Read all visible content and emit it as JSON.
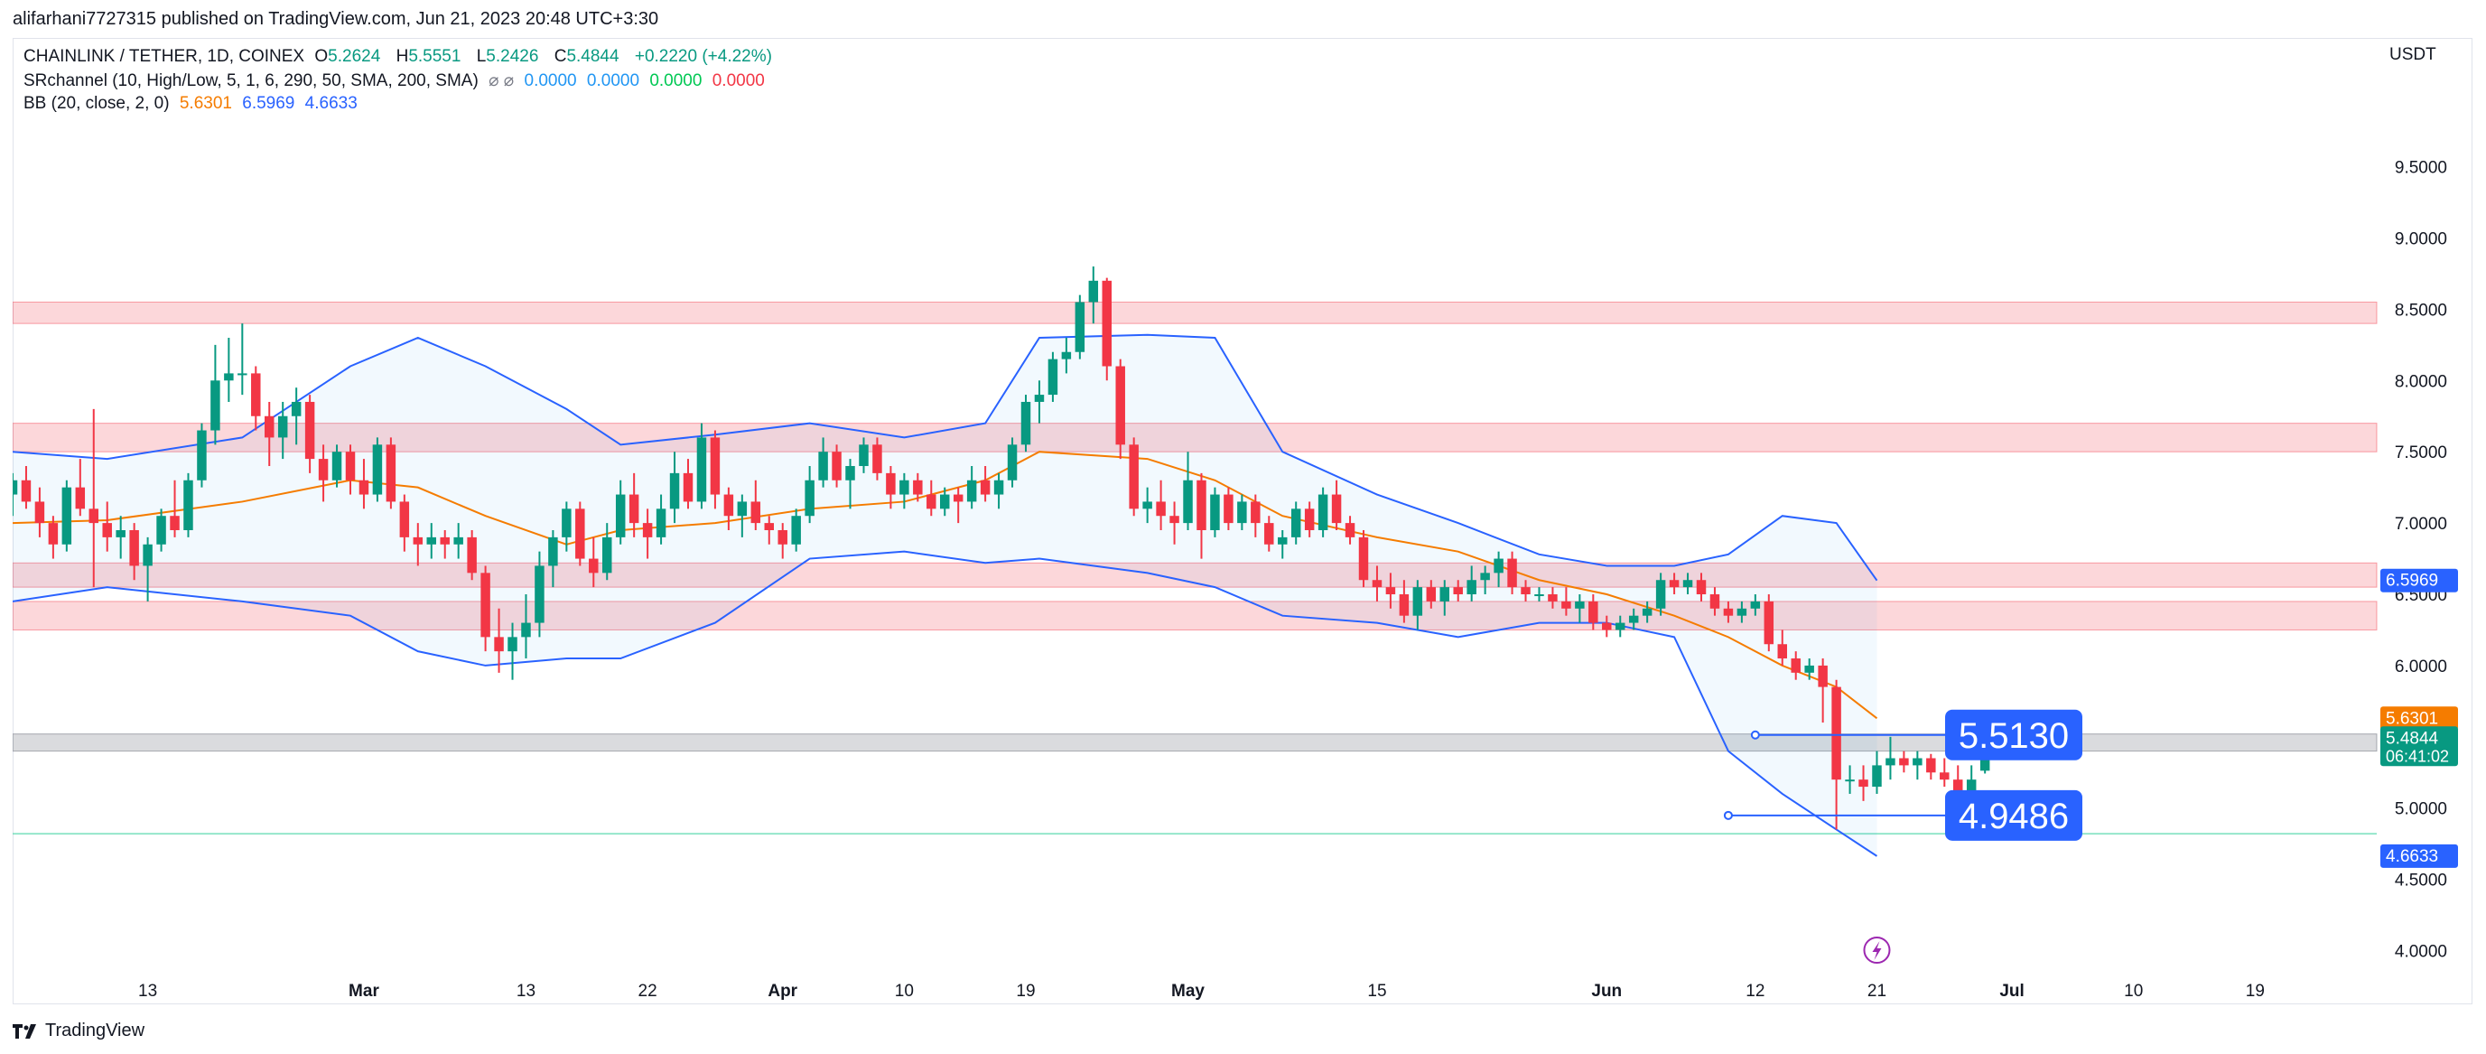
{
  "header": {
    "published": "alifarhani7727315 published on TradingView.com, Jun 21, 2023 20:48 UTC+3:30"
  },
  "legend": {
    "title": "CHAINLINK / TETHER, 1D, COINEX",
    "open_label": "O",
    "open": "5.2624",
    "high_label": "H",
    "high": "5.5551",
    "low_label": "L",
    "low": "5.2426",
    "close_label": "C",
    "close": "5.4844",
    "change": "+0.2220 (+4.22%)",
    "sr_title": "SRchannel (10, High/Low, 5, 1, 6, 290, 50, SMA, 200, SMA)",
    "sr_icons": "⌀ ⌀",
    "sr_v1": "0.0000",
    "sr_v2": "0.0000",
    "sr_v3": "0.0000",
    "sr_v4": "0.0000",
    "bb_title": "BB (20, close, 2, 0)",
    "bb_basis": "5.6301",
    "bb_upper": "6.5969",
    "bb_lower": "4.6633"
  },
  "currency": "USDT",
  "footer": {
    "brand": "TradingView"
  },
  "colors": {
    "up": "#089981",
    "down": "#f23645",
    "bb_upper": "#2962ff",
    "bb_basis": "#f57c00",
    "bb_fill": "#2196f3",
    "sr_zone": "#f23645"
  },
  "chart_data": {
    "type": "candlestick",
    "title": "CHAINLINK / TETHER, 1D, COINEX",
    "ylim": [
      3.75,
      10.15
    ],
    "y_ticks": [
      "4.0000",
      "4.5000",
      "5.0000",
      "5.5000",
      "6.0000",
      "6.5000",
      "7.0000",
      "7.5000",
      "8.0000",
      "8.5000",
      "9.0000",
      "9.5000"
    ],
    "y_tick_values": [
      4.0,
      4.5,
      5.0,
      5.5,
      6.0,
      6.5,
      7.0,
      7.5,
      8.0,
      8.5,
      9.0,
      9.5
    ],
    "x_ticks": [
      {
        "label": "13",
        "date": "2023-02-13"
      },
      {
        "label": "Mar",
        "date": "2023-03-01"
      },
      {
        "label": "13",
        "date": "2023-03-13"
      },
      {
        "label": "22",
        "date": "2023-03-22"
      },
      {
        "label": "Apr",
        "date": "2023-04-01"
      },
      {
        "label": "10",
        "date": "2023-04-10"
      },
      {
        "label": "19",
        "date": "2023-04-19"
      },
      {
        "label": "May",
        "date": "2023-05-01"
      },
      {
        "label": "15",
        "date": "2023-05-15"
      },
      {
        "label": "Jun",
        "date": "2023-06-01"
      },
      {
        "label": "12",
        "date": "2023-06-12"
      },
      {
        "label": "21",
        "date": "2023-06-21"
      },
      {
        "label": "Jul",
        "date": "2023-07-01"
      },
      {
        "label": "10",
        "date": "2023-07-10"
      },
      {
        "label": "19",
        "date": "2023-07-19"
      }
    ],
    "x_range": [
      "2023-02-03",
      "2023-07-28"
    ],
    "candles_start": "2023-02-03",
    "candles": [
      [
        7.2,
        7.35,
        7.05,
        7.3
      ],
      [
        7.3,
        7.4,
        7.1,
        7.15
      ],
      [
        7.15,
        7.25,
        6.9,
        7.0
      ],
      [
        7.0,
        7.05,
        6.75,
        6.85
      ],
      [
        6.85,
        7.3,
        6.8,
        7.25
      ],
      [
        7.25,
        7.45,
        7.05,
        7.1
      ],
      [
        7.1,
        7.8,
        6.55,
        7.0
      ],
      [
        7.0,
        7.15,
        6.8,
        6.9
      ],
      [
        6.9,
        7.05,
        6.75,
        6.95
      ],
      [
        6.95,
        7.0,
        6.6,
        6.7
      ],
      [
        6.7,
        6.9,
        6.45,
        6.85
      ],
      [
        6.85,
        7.1,
        6.8,
        7.05
      ],
      [
        7.05,
        7.3,
        6.9,
        6.95
      ],
      [
        6.95,
        7.35,
        6.9,
        7.3
      ],
      [
        7.3,
        7.7,
        7.25,
        7.65
      ],
      [
        7.65,
        8.25,
        7.55,
        8.0
      ],
      [
        8.0,
        8.3,
        7.85,
        8.05
      ],
      [
        8.05,
        8.4,
        7.9,
        8.05
      ],
      [
        8.05,
        8.1,
        7.65,
        7.75
      ],
      [
        7.75,
        7.85,
        7.4,
        7.6
      ],
      [
        7.6,
        7.85,
        7.45,
        7.75
      ],
      [
        7.75,
        7.95,
        7.55,
        7.85
      ],
      [
        7.85,
        7.9,
        7.35,
        7.45
      ],
      [
        7.45,
        7.55,
        7.15,
        7.3
      ],
      [
        7.3,
        7.55,
        7.25,
        7.5
      ],
      [
        7.5,
        7.55,
        7.2,
        7.3
      ],
      [
        7.3,
        7.45,
        7.1,
        7.2
      ],
      [
        7.2,
        7.6,
        7.15,
        7.55
      ],
      [
        7.55,
        7.6,
        7.1,
        7.15
      ],
      [
        7.15,
        7.2,
        6.8,
        6.9
      ],
      [
        6.9,
        7.0,
        6.7,
        6.85
      ],
      [
        6.85,
        7.0,
        6.75,
        6.9
      ],
      [
        6.9,
        6.95,
        6.75,
        6.85
      ],
      [
        6.85,
        7.0,
        6.75,
        6.9
      ],
      [
        6.9,
        6.95,
        6.6,
        6.65
      ],
      [
        6.65,
        6.7,
        6.1,
        6.2
      ],
      [
        6.2,
        6.4,
        5.95,
        6.1
      ],
      [
        6.1,
        6.3,
        5.9,
        6.2
      ],
      [
        6.2,
        6.5,
        6.05,
        6.3
      ],
      [
        6.3,
        6.8,
        6.2,
        6.7
      ],
      [
        6.7,
        6.95,
        6.55,
        6.9
      ],
      [
        6.9,
        7.15,
        6.8,
        7.1
      ],
      [
        7.1,
        7.15,
        6.7,
        6.75
      ],
      [
        6.75,
        6.9,
        6.55,
        6.65
      ],
      [
        6.65,
        7.0,
        6.6,
        6.9
      ],
      [
        6.9,
        7.3,
        6.85,
        7.2
      ],
      [
        7.2,
        7.35,
        6.9,
        7.0
      ],
      [
        7.0,
        7.1,
        6.75,
        6.9
      ],
      [
        6.9,
        7.2,
        6.85,
        7.1
      ],
      [
        7.1,
        7.5,
        7.0,
        7.35
      ],
      [
        7.35,
        7.45,
        7.1,
        7.15
      ],
      [
        7.15,
        7.7,
        7.1,
        7.6
      ],
      [
        7.6,
        7.65,
        7.1,
        7.2
      ],
      [
        7.2,
        7.25,
        6.95,
        7.05
      ],
      [
        7.05,
        7.2,
        6.9,
        7.15
      ],
      [
        7.15,
        7.3,
        6.95,
        7.0
      ],
      [
        7.0,
        7.05,
        6.85,
        6.95
      ],
      [
        6.95,
        7.0,
        6.75,
        6.85
      ],
      [
        6.85,
        7.1,
        6.8,
        7.05
      ],
      [
        7.05,
        7.4,
        7.0,
        7.3
      ],
      [
        7.3,
        7.6,
        7.25,
        7.5
      ],
      [
        7.5,
        7.55,
        7.25,
        7.3
      ],
      [
        7.3,
        7.45,
        7.1,
        7.4
      ],
      [
        7.4,
        7.6,
        7.35,
        7.55
      ],
      [
        7.55,
        7.6,
        7.3,
        7.35
      ],
      [
        7.35,
        7.4,
        7.1,
        7.2
      ],
      [
        7.2,
        7.35,
        7.1,
        7.3
      ],
      [
        7.3,
        7.35,
        7.15,
        7.2
      ],
      [
        7.2,
        7.3,
        7.05,
        7.1
      ],
      [
        7.1,
        7.25,
        7.05,
        7.2
      ],
      [
        7.2,
        7.25,
        7.0,
        7.15
      ],
      [
        7.15,
        7.4,
        7.1,
        7.3
      ],
      [
        7.3,
        7.4,
        7.15,
        7.2
      ],
      [
        7.2,
        7.35,
        7.1,
        7.3
      ],
      [
        7.3,
        7.6,
        7.25,
        7.55
      ],
      [
        7.55,
        7.9,
        7.5,
        7.85
      ],
      [
        7.85,
        8.0,
        7.7,
        7.9
      ],
      [
        7.9,
        8.2,
        7.85,
        8.15
      ],
      [
        8.15,
        8.3,
        8.05,
        8.2
      ],
      [
        8.2,
        8.6,
        8.15,
        8.55
      ],
      [
        8.55,
        8.8,
        8.4,
        8.7
      ],
      [
        8.7,
        8.72,
        8.0,
        8.1
      ],
      [
        8.1,
        8.15,
        7.45,
        7.55
      ],
      [
        7.55,
        7.6,
        7.05,
        7.1
      ],
      [
        7.1,
        7.25,
        7.0,
        7.15
      ],
      [
        7.15,
        7.3,
        6.95,
        7.05
      ],
      [
        7.05,
        7.15,
        6.85,
        7.0
      ],
      [
        7.0,
        7.5,
        6.95,
        7.3
      ],
      [
        7.3,
        7.35,
        6.75,
        6.95
      ],
      [
        6.95,
        7.25,
        6.9,
        7.2
      ],
      [
        7.2,
        7.25,
        6.95,
        7.0
      ],
      [
        7.0,
        7.2,
        6.95,
        7.15
      ],
      [
        7.15,
        7.2,
        6.9,
        7.0
      ],
      [
        7.0,
        7.05,
        6.8,
        6.85
      ],
      [
        6.85,
        6.95,
        6.75,
        6.9
      ],
      [
        6.9,
        7.15,
        6.85,
        7.1
      ],
      [
        7.1,
        7.15,
        6.9,
        6.95
      ],
      [
        6.95,
        7.25,
        6.9,
        7.2
      ],
      [
        7.2,
        7.3,
        6.95,
        7.0
      ],
      [
        7.0,
        7.05,
        6.85,
        6.9
      ],
      [
        6.9,
        6.95,
        6.55,
        6.6
      ],
      [
        6.6,
        6.7,
        6.45,
        6.55
      ],
      [
        6.55,
        6.65,
        6.4,
        6.5
      ],
      [
        6.5,
        6.6,
        6.3,
        6.35
      ],
      [
        6.35,
        6.6,
        6.25,
        6.55
      ],
      [
        6.55,
        6.6,
        6.4,
        6.45
      ],
      [
        6.45,
        6.6,
        6.35,
        6.55
      ],
      [
        6.55,
        6.6,
        6.45,
        6.5
      ],
      [
        6.5,
        6.7,
        6.45,
        6.6
      ],
      [
        6.6,
        6.7,
        6.5,
        6.65
      ],
      [
        6.65,
        6.8,
        6.55,
        6.75
      ],
      [
        6.75,
        6.8,
        6.5,
        6.55
      ],
      [
        6.55,
        6.6,
        6.45,
        6.5
      ],
      [
        6.5,
        6.55,
        6.45,
        6.5
      ],
      [
        6.5,
        6.55,
        6.4,
        6.45
      ],
      [
        6.45,
        6.55,
        6.35,
        6.4
      ],
      [
        6.4,
        6.5,
        6.3,
        6.45
      ],
      [
        6.45,
        6.5,
        6.25,
        6.3
      ],
      [
        6.3,
        6.35,
        6.2,
        6.25
      ],
      [
        6.25,
        6.35,
        6.2,
        6.3
      ],
      [
        6.3,
        6.4,
        6.25,
        6.35
      ],
      [
        6.35,
        6.45,
        6.3,
        6.4
      ],
      [
        6.4,
        6.65,
        6.35,
        6.6
      ],
      [
        6.6,
        6.65,
        6.5,
        6.55
      ],
      [
        6.55,
        6.65,
        6.5,
        6.6
      ],
      [
        6.6,
        6.65,
        6.45,
        6.5
      ],
      [
        6.5,
        6.55,
        6.35,
        6.4
      ],
      [
        6.4,
        6.45,
        6.3,
        6.35
      ],
      [
        6.35,
        6.45,
        6.3,
        6.4
      ],
      [
        6.4,
        6.5,
        6.35,
        6.45
      ],
      [
        6.45,
        6.5,
        6.1,
        6.15
      ],
      [
        6.15,
        6.25,
        6.0,
        6.05
      ],
      [
        6.05,
        6.1,
        5.9,
        5.95
      ],
      [
        5.95,
        6.05,
        5.9,
        6.0
      ],
      [
        6.0,
        6.05,
        5.6,
        5.85
      ],
      [
        5.85,
        5.9,
        4.85,
        5.2
      ],
      [
        5.2,
        5.3,
        5.1,
        5.2
      ],
      [
        5.2,
        5.3,
        5.05,
        5.15
      ],
      [
        5.15,
        5.4,
        5.1,
        5.3
      ],
      [
        5.3,
        5.5,
        5.2,
        5.35
      ],
      [
        5.35,
        5.4,
        5.25,
        5.3
      ],
      [
        5.3,
        5.4,
        5.2,
        5.35
      ],
      [
        5.35,
        5.38,
        5.2,
        5.25
      ],
      [
        5.25,
        5.35,
        5.15,
        5.2
      ],
      [
        5.2,
        5.3,
        5.05,
        5.1
      ],
      [
        5.1,
        5.3,
        5.05,
        5.2
      ],
      [
        5.2624,
        5.5551,
        5.2426,
        5.4844
      ]
    ],
    "series": [
      {
        "name": "BB Upper",
        "dates": [
          "2023-02-03",
          "2023-02-10",
          "2023-02-20",
          "2023-02-28",
          "2023-03-05",
          "2023-03-10",
          "2023-03-16",
          "2023-03-20",
          "2023-03-27",
          "2023-04-03",
          "2023-04-10",
          "2023-04-16",
          "2023-04-20",
          "2023-04-28",
          "2023-05-03",
          "2023-05-08",
          "2023-05-15",
          "2023-05-21",
          "2023-05-27",
          "2023-06-01",
          "2023-06-06",
          "2023-06-10",
          "2023-06-14",
          "2023-06-18",
          "2023-06-21"
        ],
        "values": [
          7.5,
          7.45,
          7.6,
          8.1,
          8.3,
          8.1,
          7.8,
          7.55,
          7.62,
          7.7,
          7.6,
          7.7,
          8.3,
          8.32,
          8.3,
          7.5,
          7.2,
          7.0,
          6.78,
          6.7,
          6.7,
          6.78,
          7.05,
          7.0,
          6.5969
        ]
      },
      {
        "name": "BB Basis",
        "dates": [
          "2023-02-03",
          "2023-02-10",
          "2023-02-20",
          "2023-02-28",
          "2023-03-05",
          "2023-03-10",
          "2023-03-16",
          "2023-03-20",
          "2023-03-27",
          "2023-04-03",
          "2023-04-10",
          "2023-04-16",
          "2023-04-20",
          "2023-04-28",
          "2023-05-03",
          "2023-05-08",
          "2023-05-15",
          "2023-05-21",
          "2023-05-27",
          "2023-06-01",
          "2023-06-06",
          "2023-06-10",
          "2023-06-14",
          "2023-06-18",
          "2023-06-21"
        ],
        "values": [
          7.0,
          7.02,
          7.15,
          7.3,
          7.25,
          7.05,
          6.85,
          6.95,
          7.0,
          7.1,
          7.15,
          7.3,
          7.5,
          7.45,
          7.3,
          7.05,
          6.9,
          6.8,
          6.6,
          6.5,
          6.35,
          6.2,
          6.0,
          5.85,
          5.6301
        ]
      },
      {
        "name": "BB Lower",
        "dates": [
          "2023-02-03",
          "2023-02-10",
          "2023-02-20",
          "2023-02-28",
          "2023-03-05",
          "2023-03-10",
          "2023-03-16",
          "2023-03-20",
          "2023-03-27",
          "2023-04-03",
          "2023-04-10",
          "2023-04-16",
          "2023-04-20",
          "2023-04-28",
          "2023-05-03",
          "2023-05-08",
          "2023-05-15",
          "2023-05-21",
          "2023-05-27",
          "2023-06-01",
          "2023-06-06",
          "2023-06-10",
          "2023-06-14",
          "2023-06-18",
          "2023-06-21"
        ],
        "values": [
          6.45,
          6.55,
          6.45,
          6.35,
          6.1,
          6.0,
          6.05,
          6.05,
          6.3,
          6.75,
          6.8,
          6.72,
          6.75,
          6.65,
          6.55,
          6.35,
          6.3,
          6.2,
          6.3,
          6.3,
          6.2,
          5.4,
          5.1,
          4.85,
          4.6633
        ]
      }
    ],
    "sr_zones": [
      [
        8.4,
        8.55
      ],
      [
        7.5,
        7.7
      ],
      [
        6.55,
        6.72
      ],
      [
        6.25,
        6.45
      ]
    ],
    "gray_zone": [
      5.4,
      5.52
    ],
    "support_line": 4.82,
    "annotations": [
      {
        "label": "5.5130",
        "value": 5.513,
        "start": "2023-06-12"
      },
      {
        "label": "4.9486",
        "value": 4.9486,
        "start": "2023-06-10"
      }
    ],
    "price_labels": [
      {
        "text": "6.5969",
        "value": 6.5969,
        "color": "#2962ff"
      },
      {
        "text": "5.6301",
        "value": 5.6301,
        "color": "#f57c00"
      },
      {
        "text": "5.4844",
        "value": 5.4844,
        "color": "#089981",
        "sub": "06:41:02"
      },
      {
        "text": "4.6633",
        "value": 4.6633,
        "color": "#2962ff"
      }
    ]
  }
}
